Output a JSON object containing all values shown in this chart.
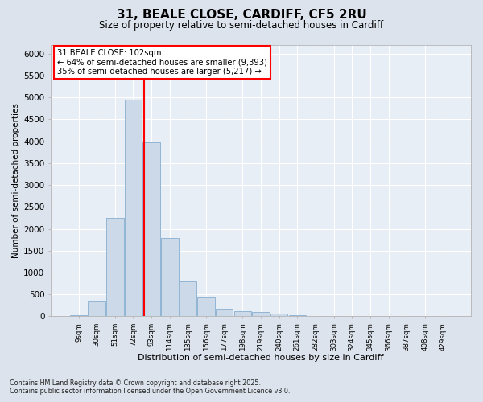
{
  "title_line1": "31, BEALE CLOSE, CARDIFF, CF5 2RU",
  "title_line2": "Size of property relative to semi-detached houses in Cardiff",
  "xlabel": "Distribution of semi-detached houses by size in Cardiff",
  "ylabel": "Number of semi-detached properties",
  "bin_labels": [
    "9sqm",
    "30sqm",
    "51sqm",
    "72sqm",
    "93sqm",
    "114sqm",
    "135sqm",
    "156sqm",
    "177sqm",
    "198sqm",
    "219sqm",
    "240sqm",
    "261sqm",
    "282sqm",
    "303sqm",
    "324sqm",
    "345sqm",
    "366sqm",
    "387sqm",
    "408sqm",
    "429sqm"
  ],
  "bar_heights": [
    25,
    330,
    2250,
    4950,
    3980,
    1780,
    800,
    430,
    175,
    120,
    90,
    55,
    30,
    15,
    10,
    8,
    5,
    3,
    2,
    1,
    1
  ],
  "bar_color": "#ccd9e8",
  "bar_edgecolor": "#85aece",
  "vline_x": 3.58,
  "vline_color": "red",
  "annotation_title": "31 BEALE CLOSE: 102sqm",
  "annotation_line1": "← 64% of semi-detached houses are smaller (9,393)",
  "annotation_line2": "35% of semi-detached houses are larger (5,217) →",
  "annotation_box_edgecolor": "red",
  "ylim": [
    0,
    6200
  ],
  "yticks": [
    0,
    500,
    1000,
    1500,
    2000,
    2500,
    3000,
    3500,
    4000,
    4500,
    5000,
    5500,
    6000
  ],
  "fig_bg": "#dce3ec",
  "plot_bg": "#e8eef5",
  "grid_color": "#c8d0dc",
  "footnote1": "Contains HM Land Registry data © Crown copyright and database right 2025.",
  "footnote2": "Contains public sector information licensed under the Open Government Licence v3.0."
}
